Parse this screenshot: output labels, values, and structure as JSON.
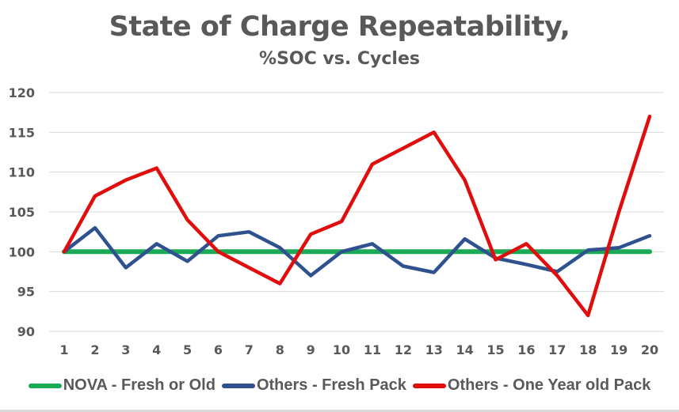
{
  "chart_data": {
    "type": "line",
    "title": "State of Charge Repeatability,",
    "subtitle": "%SOC vs. Cycles",
    "xlabel": "",
    "ylabel": "",
    "x": [
      1,
      2,
      3,
      4,
      5,
      6,
      7,
      8,
      9,
      10,
      11,
      12,
      13,
      14,
      15,
      16,
      17,
      18,
      19,
      20
    ],
    "x_tick_labels": [
      "1",
      "2",
      "3",
      "4",
      "5",
      "6",
      "7",
      "8",
      "9",
      "10",
      "11",
      "12",
      "13",
      "14",
      "15",
      "16",
      "17",
      "18",
      "19",
      "20"
    ],
    "ylim": [
      90,
      120
    ],
    "y_ticks": [
      90,
      95,
      100,
      105,
      110,
      115,
      120
    ],
    "y_tick_labels": [
      "90",
      "95",
      "100",
      "105",
      "110",
      "115",
      "120"
    ],
    "grid": true,
    "legend_position": "bottom",
    "series": [
      {
        "name": "NOVA - Fresh or Old",
        "color": "#1aaa55",
        "values": [
          100,
          100,
          100,
          100,
          100,
          100,
          100,
          100,
          100,
          100,
          100,
          100,
          100,
          100,
          100,
          100,
          100,
          100,
          100,
          100
        ]
      },
      {
        "name": "Others - Fresh Pack",
        "color": "#2f528f",
        "values": [
          100,
          103,
          98,
          101,
          98.8,
          102,
          102.5,
          100.5,
          97,
          100,
          101,
          98.2,
          97.4,
          101.6,
          99.2,
          98.4,
          97.5,
          100.2,
          100.5,
          102
        ]
      },
      {
        "name": "Others - One Year old Pack",
        "color": "#e00d0d",
        "values": [
          100,
          107,
          109,
          110.5,
          104,
          100,
          98,
          96,
          102.2,
          103.8,
          111,
          113,
          115,
          109,
          99,
          101,
          97,
          92,
          105,
          117
        ]
      }
    ]
  }
}
